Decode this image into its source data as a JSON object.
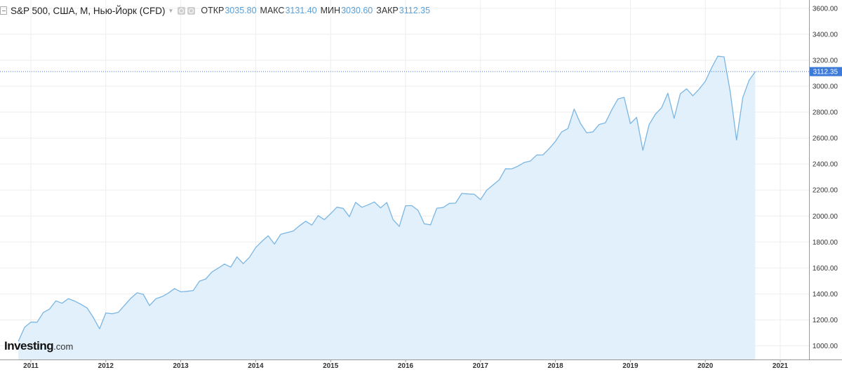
{
  "legend": {
    "title": "S&P 500, США, М, Нью-Йорк (CFD)",
    "ohlc": [
      {
        "key": "ОТКР",
        "value": "3035.80"
      },
      {
        "key": "МАКС",
        "value": "3131.40"
      },
      {
        "key": "МИН",
        "value": "3030.60"
      },
      {
        "key": "ЗАКР",
        "value": "3112.35"
      }
    ]
  },
  "logo": {
    "brand": "Investing",
    "suffix": ".com"
  },
  "colors": {
    "line": "#7bb6e3",
    "fill": "#e1f0fa",
    "grid": "#eeeeee",
    "price_tag": "#3e7bd8",
    "axis": "#999999"
  },
  "chart_data": {
    "type": "area",
    "frequency": "monthly",
    "last_price_label": "3112.35",
    "last_price": 3112.35,
    "ylim": [
      900,
      3660
    ],
    "xlim": [
      "2010-11",
      "2021-06"
    ],
    "y_ticks": [
      "1000.00",
      "1200.00",
      "1400.00",
      "1600.00",
      "1800.00",
      "2000.00",
      "2200.00",
      "2400.00",
      "2600.00",
      "2800.00",
      "3000.00",
      "3200.00",
      "3400.00",
      "3600.00"
    ],
    "x_ticks": [
      "2011",
      "2012",
      "2013",
      "2014",
      "2015",
      "2016",
      "2017",
      "2018",
      "2019",
      "2020",
      "2021"
    ],
    "series": [
      {
        "x_start": "2010-11",
        "values": [
          1035,
          1143,
          1183,
          1182,
          1257,
          1284,
          1346,
          1328,
          1364,
          1345,
          1320,
          1292,
          1218,
          1131,
          1253,
          1247,
          1258,
          1312,
          1366,
          1408,
          1397,
          1310,
          1362,
          1379,
          1406,
          1441,
          1416,
          1420,
          1426,
          1498,
          1515,
          1569,
          1598,
          1630,
          1606,
          1685,
          1633,
          1682,
          1757,
          1805,
          1848,
          1783,
          1859,
          1872,
          1884,
          1924,
          1960,
          1930,
          2003,
          1972,
          2018,
          2068,
          2059,
          1995,
          2105,
          2067,
          2086,
          2108,
          2063,
          2104,
          1972,
          1920,
          2079,
          2080,
          2044,
          1940,
          1932,
          2060,
          2065,
          2097,
          2099,
          2174,
          2170,
          2168,
          2126,
          2199,
          2239,
          2279,
          2364,
          2363,
          2384,
          2412,
          2424,
          2470,
          2471,
          2519,
          2575,
          2648,
          2674,
          2824,
          2714,
          2641,
          2648,
          2705,
          2718,
          2816,
          2901,
          2914,
          2712,
          2760,
          2506,
          2704,
          2784,
          2834,
          2946,
          2752,
          2942,
          2980,
          2926,
          2977,
          3038,
          3141,
          3231,
          3226,
          2954,
          2585,
          2912,
          3044,
          3112
        ]
      }
    ]
  }
}
